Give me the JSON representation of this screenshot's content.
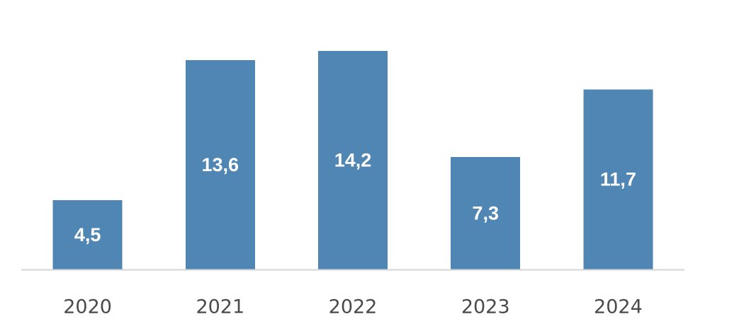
{
  "colors": {
    "bar": "#4f86b3",
    "axis": "#d4d4d4",
    "value_label": "#ffffff",
    "tick_label": "#4a4a4a",
    "background": "#ffffff"
  },
  "chart_data": {
    "type": "bar",
    "title": "",
    "xlabel": "",
    "ylabel": "",
    "categories": [
      "2020",
      "2021",
      "2022",
      "2023",
      "2024"
    ],
    "values": [
      4.5,
      13.6,
      14.2,
      7.3,
      11.7
    ],
    "value_labels": [
      "4,5",
      "13,6",
      "14,2",
      "7,3",
      "11,7"
    ],
    "ylim": [
      0,
      16
    ],
    "grid": false,
    "legend": "none",
    "data_label_position": "inside-center"
  }
}
